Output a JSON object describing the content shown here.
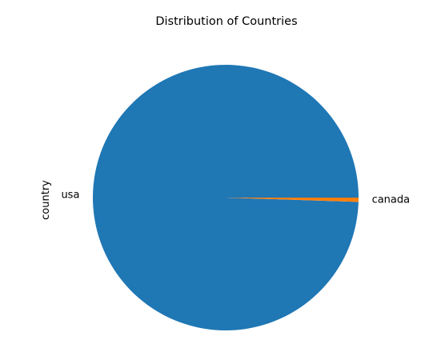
{
  "chart_data": {
    "type": "pie",
    "title": "Distribution of Countries",
    "ylabel": "country",
    "slices": [
      {
        "label": "usa",
        "value": 99.48,
        "color": "#1f77b4"
      },
      {
        "label": "canada",
        "value": 0.52,
        "color": "#ff7f0e"
      }
    ],
    "start_angle_deg": 0,
    "direction": "counterclockwise",
    "legend": "none"
  }
}
